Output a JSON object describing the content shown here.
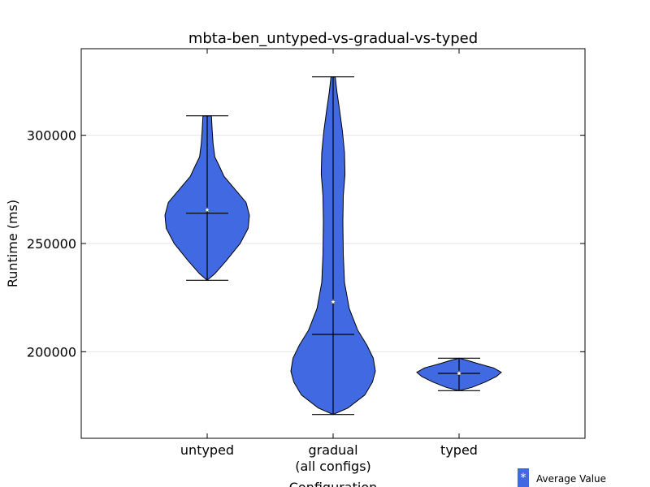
{
  "chart_data": {
    "type": "violin",
    "title": "mbta-ben_untyped-vs-gradual-vs-typed",
    "xlabel": "Configuration",
    "ylabel": "Runtime (ms)",
    "ylim": [
      160000,
      340000
    ],
    "yticks": [
      200000,
      250000,
      300000
    ],
    "ytick_labels": [
      "200000",
      "250000",
      "300000"
    ],
    "grid": "horizontal",
    "legend": {
      "placement": "bottom-right",
      "marker": "*",
      "label": "Average Value"
    },
    "colors": {
      "violin_fill": "#4169e1",
      "edge": "#000000",
      "grid": "#e6e6e6"
    },
    "categories": [
      {
        "label": "untyped",
        "label_lines": [
          "untyped"
        ],
        "min": 233000,
        "max": 309000,
        "median": 264000,
        "mean": 265500,
        "profile": [
          [
            233000,
            0.0
          ],
          [
            236000,
            0.18
          ],
          [
            242000,
            0.45
          ],
          [
            250000,
            0.78
          ],
          [
            257000,
            0.97
          ],
          [
            263000,
            1.0
          ],
          [
            269000,
            0.92
          ],
          [
            275000,
            0.66
          ],
          [
            281000,
            0.4
          ],
          [
            286000,
            0.28
          ],
          [
            290000,
            0.18
          ],
          [
            296000,
            0.14
          ],
          [
            302000,
            0.12
          ],
          [
            309000,
            0.1
          ]
        ]
      },
      {
        "label": "gradual (all configs)",
        "label_lines": [
          "gradual",
          "(all configs)"
        ],
        "min": 171000,
        "max": 327000,
        "median": 208000,
        "mean": 223000,
        "profile": [
          [
            171000,
            0.0
          ],
          [
            174000,
            0.35
          ],
          [
            180000,
            0.75
          ],
          [
            186000,
            0.93
          ],
          [
            191000,
            1.0
          ],
          [
            197000,
            0.95
          ],
          [
            203000,
            0.8
          ],
          [
            210000,
            0.58
          ],
          [
            220000,
            0.38
          ],
          [
            232000,
            0.27
          ],
          [
            245000,
            0.24
          ],
          [
            260000,
            0.23
          ],
          [
            272000,
            0.24
          ],
          [
            282000,
            0.28
          ],
          [
            292000,
            0.27
          ],
          [
            302000,
            0.22
          ],
          [
            312000,
            0.15
          ],
          [
            320000,
            0.09
          ],
          [
            327000,
            0.05
          ]
        ]
      },
      {
        "label": "typed",
        "label_lines": [
          "typed"
        ],
        "min": 182000,
        "max": 197000,
        "median": 190000,
        "mean": 190000,
        "profile": [
          [
            182000,
            0.0
          ],
          [
            183500,
            0.3
          ],
          [
            186000,
            0.62
          ],
          [
            188500,
            0.88
          ],
          [
            190500,
            1.0
          ],
          [
            192500,
            0.82
          ],
          [
            194500,
            0.45
          ],
          [
            196000,
            0.2
          ],
          [
            197000,
            0.0
          ]
        ]
      }
    ]
  }
}
